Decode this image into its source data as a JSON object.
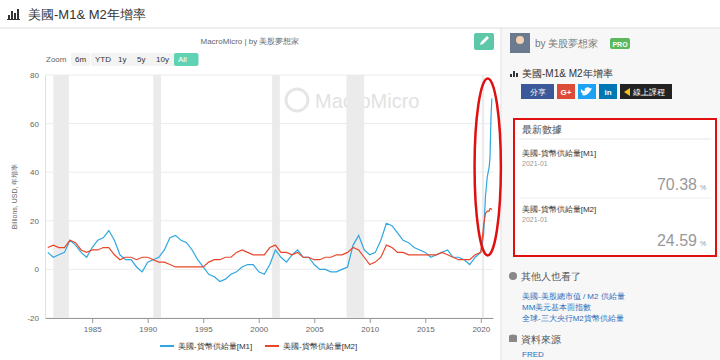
{
  "page": {
    "header_title": "美國-M1& M2年增率",
    "watermark": "MacroMicro",
    "zoom": {
      "label": "Zoom",
      "buttons": [
        "6m",
        "YTD",
        "1y",
        "5y",
        "10y",
        "All"
      ],
      "active": "All"
    }
  },
  "chart_data": {
    "type": "line",
    "title": "MacroMicro | by 美股夢想家",
    "ylabel": "Billions, USD, 年增率",
    "x": [
      1981,
      1981.5,
      1982,
      1982.5,
      1983,
      1983.5,
      1984,
      1984.5,
      1985,
      1985.5,
      1986,
      1986.5,
      1987,
      1987.5,
      1988,
      1988.5,
      1989,
      1989.5,
      1990,
      1990.5,
      1991,
      1991.5,
      1992,
      1992.5,
      1993,
      1993.5,
      1994,
      1994.5,
      1995,
      1995.5,
      1996,
      1996.5,
      1997,
      1997.5,
      1998,
      1998.5,
      1999,
      1999.5,
      2000,
      2000.5,
      2001,
      2001.5,
      2002,
      2002.5,
      2003,
      2003.5,
      2004,
      2004.5,
      2005,
      2005.5,
      2006,
      2006.5,
      2007,
      2007.5,
      2008,
      2008.5,
      2009,
      2009.5,
      2010,
      2010.5,
      2011,
      2011.5,
      2012,
      2012.5,
      2013,
      2013.5,
      2014,
      2014.5,
      2015,
      2015.5,
      2016,
      2016.5,
      2017,
      2017.5,
      2018,
      2018.5,
      2019,
      2019.5,
      2020,
      2020.25,
      2020.42,
      2020.58,
      2020.75,
      2020.83,
      2020.92,
      2021
    ],
    "series": [
      {
        "name": "美國-貨幣供給量[M1]",
        "color": "#2ea7e0",
        "values": [
          7,
          5,
          6,
          7,
          12,
          10,
          7,
          5,
          9,
          12,
          13,
          16,
          12,
          6,
          4,
          4,
          1,
          -1,
          3,
          4,
          5,
          8,
          13,
          14,
          12,
          11,
          8,
          4,
          1,
          -2,
          -3,
          -5,
          -4,
          -2,
          -1,
          1,
          2,
          2,
          -1,
          -2,
          2,
          8,
          5,
          3,
          6,
          8,
          5,
          5,
          2,
          0,
          0,
          -1,
          -1,
          0,
          1,
          10,
          14,
          8,
          6,
          7,
          12,
          19,
          18,
          15,
          12,
          11,
          9,
          8,
          7,
          5,
          6,
          7,
          8,
          5,
          5,
          4,
          2,
          5,
          7,
          14,
          30,
          38,
          42,
          46,
          63,
          70.38
        ]
      },
      {
        "name": "美國-貨幣供給量[M2]",
        "color": "#e8462a",
        "values": [
          9,
          10,
          9,
          9,
          12,
          11,
          8,
          7,
          8,
          8,
          9,
          9,
          6,
          4,
          5,
          5,
          4,
          5,
          5,
          4,
          3,
          3,
          2,
          1,
          1,
          1,
          1,
          1,
          1,
          3,
          4,
          4,
          5,
          5,
          7,
          8,
          7,
          6,
          6,
          6,
          9,
          10,
          7,
          7,
          6,
          7,
          5,
          5,
          4,
          4,
          5,
          5,
          6,
          6,
          7,
          9,
          8,
          5,
          2,
          3,
          5,
          10,
          9,
          7,
          7,
          6,
          6,
          6,
          6,
          6,
          6,
          7,
          6,
          5,
          4,
          4,
          4,
          6,
          7,
          18,
          23,
          24,
          24,
          25,
          25,
          24.59
        ]
      }
    ],
    "shaded_periods": [
      [
        1981.5,
        1982.9
      ],
      [
        1990.5,
        1991.2
      ],
      [
        2001.2,
        2001.9
      ],
      [
        2007.9,
        2009.5
      ],
      [
        2020.1,
        2020.3
      ]
    ],
    "xlim": [
      1980.75,
      2021.1
    ],
    "xticks": [
      1985,
      1990,
      1995,
      2000,
      2005,
      2010,
      2015,
      2020
    ],
    "ylim": [
      -20,
      80
    ],
    "yticks": [
      -20,
      0,
      20,
      40,
      60,
      80
    ],
    "grid": true,
    "legend": "bottom"
  },
  "sidebar": {
    "author": "by 美股夢想家",
    "badge": "PRO",
    "chart_title": "美國-M1& M2年增率",
    "share_buttons": [
      "分享",
      "G+",
      "in",
      "線上課程"
    ],
    "latest": {
      "title": "最新數據",
      "items": [
        {
          "name": "美國-貨幣供給量[M1]",
          "date": "2021-01",
          "value": 70.38,
          "unit": "%"
        },
        {
          "name": "美國-貨幣供給量[M2]",
          "date": "2021-01",
          "value": 24.59,
          "unit": "%"
        }
      ]
    },
    "related": {
      "title": "其他人也看了",
      "links": [
        "美國-美股總市值 / M2 供給量",
        "MM美元基本面指數",
        "全球-三大央行M2貨幣供給量"
      ]
    },
    "source": {
      "title": "資料來源",
      "items": [
        "FRED"
      ]
    }
  }
}
